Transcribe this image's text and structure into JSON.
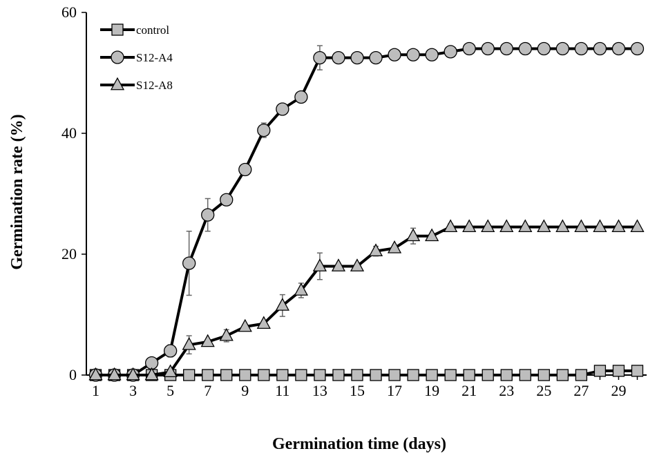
{
  "chart_data": {
    "type": "line",
    "title": "",
    "xlabel": "Germination time (days)",
    "ylabel": "Germination rate (%)",
    "xlim": [
      0.5,
      30.5
    ],
    "ylim": [
      0,
      60
    ],
    "x_ticks": [
      1,
      3,
      5,
      7,
      9,
      11,
      13,
      15,
      17,
      19,
      21,
      23,
      25,
      27,
      29
    ],
    "y_ticks": [
      0,
      20,
      40,
      60
    ],
    "grid": false,
    "legend_position": "top-left",
    "x": [
      1,
      2,
      3,
      4,
      5,
      6,
      7,
      8,
      9,
      10,
      11,
      12,
      13,
      14,
      15,
      16,
      17,
      18,
      19,
      20,
      21,
      22,
      23,
      24,
      25,
      26,
      27,
      28,
      29,
      30
    ],
    "series": [
      {
        "name": "control",
        "marker": "square",
        "values": [
          0,
          0,
          0,
          0,
          0,
          0,
          0,
          0,
          0,
          0,
          0,
          0,
          0,
          0,
          0,
          0,
          0,
          0,
          0,
          0,
          0,
          0,
          0,
          0,
          0,
          0,
          0,
          0.7,
          0.7,
          0.7
        ],
        "errors": [
          0,
          0,
          0,
          0,
          0,
          0,
          0,
          0,
          0,
          0,
          0,
          0,
          0,
          0,
          0,
          0,
          0,
          0,
          0,
          0,
          0,
          0,
          0,
          0,
          0,
          0,
          0,
          0,
          0,
          0
        ]
      },
      {
        "name": "S12-A4",
        "marker": "circle",
        "values": [
          0,
          0,
          0,
          2,
          4,
          18.5,
          26.5,
          29,
          34,
          40.5,
          44,
          46,
          52.5,
          52.5,
          52.5,
          52.5,
          53,
          53,
          53,
          53.5,
          54,
          54,
          54,
          54,
          54,
          54,
          54,
          54,
          54,
          54
        ],
        "errors": [
          0,
          0,
          0,
          0,
          1,
          5.3,
          2.7,
          0,
          0,
          1.2,
          0,
          0,
          2,
          0,
          0,
          0,
          0,
          0,
          0,
          0,
          0.5,
          0,
          0,
          0,
          0,
          0,
          0,
          0,
          0,
          0
        ]
      },
      {
        "name": "S12-A8",
        "marker": "triangle",
        "values": [
          0,
          0,
          0,
          0,
          0.5,
          5,
          5.5,
          6.5,
          8,
          8.5,
          11.5,
          14,
          18,
          18,
          18,
          20.5,
          21,
          23,
          23,
          24.5,
          24.5,
          24.5,
          24.5,
          24.5,
          24.5,
          24.5,
          24.5,
          24.5,
          24.5,
          24.5
        ],
        "errors": [
          0,
          0,
          0,
          0,
          0,
          1.5,
          0,
          1,
          0,
          0,
          1.8,
          1.2,
          2.2,
          0,
          0,
          0.8,
          0,
          1.3,
          0,
          0.5,
          0,
          0,
          0,
          0,
          0,
          0,
          0,
          0,
          0,
          0
        ]
      }
    ]
  }
}
